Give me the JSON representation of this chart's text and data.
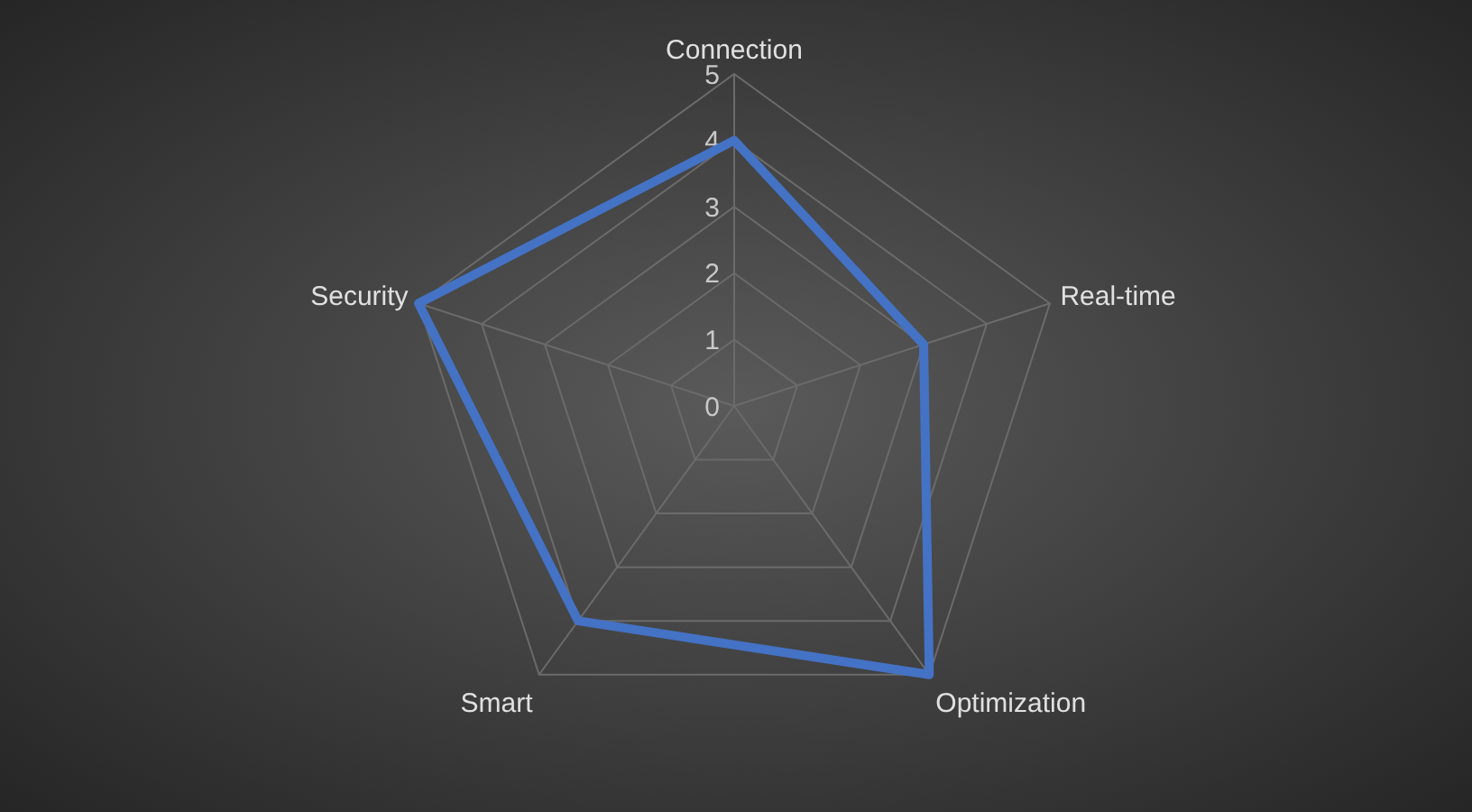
{
  "chart_data": {
    "type": "radar",
    "categories": [
      "Connection",
      "Real-time",
      "Optimization",
      "Smart",
      "Security"
    ],
    "series": [
      {
        "color": "#4472c4",
        "values": [
          4,
          3,
          5,
          4,
          5
        ]
      }
    ],
    "ylim": [
      0,
      5
    ],
    "yticks": [
      0,
      1,
      2,
      3,
      4,
      5
    ],
    "grid": true,
    "marker": "none",
    "line_style": "solid"
  }
}
